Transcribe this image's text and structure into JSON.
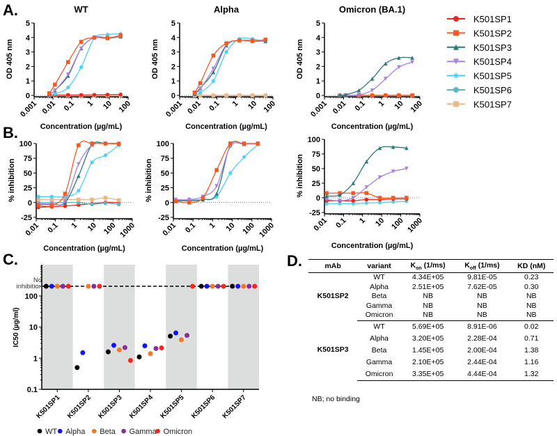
{
  "panel_labels": {
    "a": "A.",
    "b": "B.",
    "c": "C.",
    "d": "D."
  },
  "legend": [
    {
      "name": "K501SP1",
      "color": "#e8281f",
      "marker": "circle"
    },
    {
      "name": "K501SP2",
      "color": "#f25a24",
      "marker": "square"
    },
    {
      "name": "K501SP3",
      "color": "#2b7a78",
      "marker": "triangle"
    },
    {
      "name": "K501SP4",
      "color": "#a882dd",
      "marker": "triangle-down"
    },
    {
      "name": "K501SP5",
      "color": "#4dd0f0",
      "marker": "star"
    },
    {
      "name": "K501SP6",
      "color": "#5ab7c8",
      "marker": "circle"
    },
    {
      "name": "K501SP7",
      "color": "#e8b98a",
      "marker": "square"
    }
  ],
  "chart_data": [
    {
      "id": "A-WT",
      "type": "line",
      "title": "WT",
      "xlabel": "Concentration (µg/mL)",
      "ylabel": "OD 405 nm",
      "xscale": "log",
      "xlim": [
        0.001,
        100
      ],
      "xticks": [
        "0.001",
        "0.01",
        "0.1",
        "1",
        "10",
        "100"
      ],
      "ylim": [
        0,
        5
      ],
      "yticks": [
        0,
        1,
        2,
        3,
        4,
        5
      ],
      "x": [
        0.0064,
        0.0128,
        0.064,
        0.32,
        1.6,
        8,
        40
      ],
      "series": [
        {
          "name": "K501SP6",
          "values": [
            0,
            0,
            0,
            0,
            0,
            0,
            0
          ]
        },
        {
          "name": "K501SP7",
          "values": [
            0,
            0,
            0,
            0,
            0,
            0,
            0
          ]
        },
        {
          "name": "K501SP1",
          "values": [
            0.02,
            0.02,
            0.03,
            0.03,
            0.04,
            0.05,
            0.06
          ]
        },
        {
          "name": "K501SP5",
          "values": [
            0.05,
            0.1,
            0.55,
            1.95,
            3.95,
            4.2,
            4.25
          ]
        },
        {
          "name": "K501SP3",
          "values": [
            0.05,
            0.35,
            1.35,
            3.25,
            4.0,
            3.95,
            4.05
          ]
        },
        {
          "name": "K501SP4",
          "values": [
            0.05,
            0.35,
            1.45,
            3.25,
            4.0,
            4.0,
            4.05
          ]
        },
        {
          "name": "K501SP2",
          "values": [
            0.15,
            0.75,
            2.3,
            3.7,
            4.0,
            3.95,
            4.15
          ]
        }
      ]
    },
    {
      "id": "A-Alpha",
      "type": "line",
      "title": "Alpha",
      "xlabel": "Concentration (µg/mL)",
      "ylabel": "OD 405 nm",
      "xscale": "log",
      "xlim": [
        0.001,
        100
      ],
      "xticks": [
        "0.001",
        "0.01",
        "0.1",
        "1",
        "10",
        "100"
      ],
      "ylim": [
        0,
        5
      ],
      "yticks": [
        0,
        1,
        2,
        3,
        4,
        5
      ],
      "x": [
        0.0064,
        0.0128,
        0.064,
        0.32,
        1.6,
        8,
        40
      ],
      "series": [
        {
          "name": "K501SP1",
          "values": [
            0,
            0,
            0,
            0,
            0,
            0,
            0
          ]
        },
        {
          "name": "K501SP6",
          "values": [
            0,
            0,
            0,
            0,
            0,
            0,
            0
          ]
        },
        {
          "name": "K501SP7",
          "values": [
            0,
            0,
            0,
            0,
            0,
            0,
            0
          ]
        },
        {
          "name": "K501SP5",
          "values": [
            0.05,
            0.2,
            1.0,
            3.0,
            3.9,
            3.9,
            3.7
          ]
        },
        {
          "name": "K501SP3",
          "values": [
            0.1,
            0.5,
            1.6,
            3.45,
            3.8,
            3.75,
            3.75
          ]
        },
        {
          "name": "K501SP4",
          "values": [
            0.1,
            0.45,
            1.85,
            3.5,
            3.8,
            3.8,
            3.75
          ]
        },
        {
          "name": "K501SP2",
          "values": [
            0.2,
            0.85,
            2.75,
            3.6,
            3.8,
            3.75,
            3.85
          ]
        }
      ]
    },
    {
      "id": "A-Omicron",
      "type": "line",
      "title": "Omicron (BA.1)",
      "xlabel": "Concentration (µg/mL)",
      "ylabel": "OD 405 nm",
      "xscale": "log",
      "xlim": [
        0.001,
        100
      ],
      "xticks": [
        "0.001",
        "0.01",
        "0.1",
        "1",
        "10",
        "100"
      ],
      "ylim": [
        0,
        5
      ],
      "yticks": [
        0,
        1,
        2,
        3,
        4,
        5
      ],
      "x": [
        0.0064,
        0.0128,
        0.064,
        0.32,
        1.6,
        8,
        40
      ],
      "series": [
        {
          "name": "K501SP6",
          "values": [
            0,
            0,
            0,
            0,
            0,
            0,
            0
          ]
        },
        {
          "name": "K501SP7",
          "values": [
            0,
            0,
            0,
            0,
            0,
            0,
            0
          ]
        },
        {
          "name": "K501SP5",
          "values": [
            0,
            0,
            0,
            0,
            0,
            0,
            0
          ]
        },
        {
          "name": "K501SP1",
          "values": [
            0,
            0,
            0,
            0,
            0,
            0,
            0
          ]
        },
        {
          "name": "K501SP2",
          "values": [
            0,
            0,
            0,
            0,
            0,
            0,
            0
          ]
        },
        {
          "name": "K501SP4",
          "values": [
            0,
            0,
            0.05,
            0.35,
            1.15,
            1.95,
            2.3
          ]
        },
        {
          "name": "K501SP3",
          "values": [
            0,
            0.05,
            0.35,
            1.15,
            2.2,
            2.6,
            2.6
          ]
        }
      ]
    },
    {
      "id": "B-WT",
      "type": "line",
      "xlabel": "Concentration (µg/mL)",
      "ylabel": "% inhibition",
      "xscale": "log",
      "xlim": [
        0.01,
        1000
      ],
      "xticks": [
        "0.01",
        "0.1",
        "1",
        "10",
        "100",
        "1000"
      ],
      "ylim": [
        -25,
        100
      ],
      "yticks": [
        -25,
        0,
        25,
        50,
        75,
        100
      ],
      "x": [
        0.013,
        0.064,
        0.32,
        1.6,
        8,
        40,
        200
      ],
      "series": [
        {
          "name": "K501SP1",
          "values": [
            -8,
            -7,
            -6,
            -4,
            -2,
            0,
            0
          ]
        },
        {
          "name": "K501SP6",
          "values": [
            0,
            0,
            0,
            0,
            -3,
            -1,
            -3
          ]
        },
        {
          "name": "K501SP7",
          "values": [
            5,
            5,
            5,
            5,
            5,
            8,
            4
          ]
        },
        {
          "name": "K501SP5",
          "values": [
            10,
            10,
            10,
            20,
            68,
            80,
            97
          ]
        },
        {
          "name": "K501SP3",
          "values": [
            -3,
            -3,
            0,
            45,
            98,
            100,
            100
          ]
        },
        {
          "name": "K501SP4",
          "values": [
            -2,
            -2,
            2,
            65,
            97,
            100,
            100
          ]
        },
        {
          "name": "K501SP2",
          "values": [
            -5,
            -5,
            15,
            97,
            100,
            100,
            99
          ]
        }
      ]
    },
    {
      "id": "B-Alpha",
      "type": "line",
      "xlabel": "Concentration (µg/mL)",
      "ylabel": "% inhibition",
      "xscale": "log",
      "xlim": [
        0.01,
        1000
      ],
      "xticks": [
        "0.01",
        "0.1",
        "1",
        "10",
        "100",
        "1000"
      ],
      "ylim": [
        -25,
        100
      ],
      "yticks": [
        -25,
        0,
        25,
        50,
        75,
        100
      ],
      "x": [
        0.013,
        0.064,
        0.32,
        1.6,
        8,
        40,
        200
      ],
      "series": [
        {
          "name": "K501SP5",
          "values": [
            3,
            4,
            5,
            10,
            50,
            77,
            98
          ]
        },
        {
          "name": "K501SP3",
          "values": [
            3,
            3,
            5,
            15,
            97,
            99,
            100
          ]
        },
        {
          "name": "K501SP4",
          "values": [
            5,
            5,
            10,
            28,
            95,
            99,
            99
          ]
        },
        {
          "name": "K501SP2",
          "values": [
            2,
            0,
            8,
            55,
            100,
            100,
            100
          ]
        }
      ]
    },
    {
      "id": "B-Omicron",
      "type": "line",
      "xlabel": "Concentration (µg/mL)",
      "ylabel": "% inhibition",
      "xscale": "log",
      "xlim": [
        0.01,
        1000
      ],
      "xticks": [
        "0.01",
        "0.1",
        "1",
        "10",
        "100",
        "1000"
      ],
      "ylim": [
        -25,
        100
      ],
      "yticks": [
        -25,
        0,
        25,
        50,
        75,
        100
      ],
      "x": [
        0.013,
        0.064,
        0.32,
        1.6,
        8,
        40,
        200
      ],
      "series": [
        {
          "name": "K501SP5",
          "values": [
            -10,
            -10,
            -10,
            -9,
            -8,
            -7,
            -6
          ]
        },
        {
          "name": "K501SP1",
          "values": [
            -5,
            -5,
            -5,
            -3,
            -3,
            -2,
            -2
          ]
        },
        {
          "name": "K501SP2",
          "values": [
            8,
            8,
            8,
            8,
            0,
            0,
            0
          ]
        },
        {
          "name": "K501SP4",
          "values": [
            -3,
            -5,
            0,
            18,
            35,
            45,
            50
          ]
        },
        {
          "name": "K501SP3",
          "values": [
            3,
            5,
            25,
            62,
            85,
            87,
            85
          ]
        }
      ]
    },
    {
      "id": "C",
      "type": "scatter",
      "ylabel": "IC50 (µg/ml)",
      "yscale": "log",
      "ylim": [
        0.1,
        500
      ],
      "yticks": [
        "0.1",
        "1",
        "10",
        "100"
      ],
      "no_inhibition_label": "No inhibition",
      "categories": [
        "K501SP1",
        "K501SP2",
        "K501SP3",
        "K501SP4",
        "K501SP5",
        "K501SP6",
        "K501SP7"
      ],
      "series": [
        {
          "name": "WT",
          "color": "#000000",
          "values": [
            null,
            0.5,
            1.6,
            1.1,
            5.1,
            null,
            null
          ]
        },
        {
          "name": "Alpha",
          "color": "#1414f0",
          "values": [
            null,
            1.5,
            2.6,
            2.5,
            6.5,
            null,
            null
          ]
        },
        {
          "name": "Beta",
          "color": "#f07a28",
          "values": [
            null,
            null,
            1.85,
            1.4,
            3.9,
            null,
            null
          ]
        },
        {
          "name": "Gamma",
          "color": "#8a2c9c",
          "values": [
            null,
            null,
            2.2,
            2.05,
            5.4,
            null,
            null
          ]
        },
        {
          "name": "Omicron",
          "color": "#f0281e",
          "values": [
            null,
            null,
            0.85,
            2.15,
            null,
            null,
            null
          ]
        }
      ]
    }
  ],
  "table": {
    "headers": [
      "mAb",
      "variant",
      "Kon (1/ms)",
      "Koff (1/ms)",
      "KD (nM)"
    ],
    "groups": [
      {
        "mab": "K501SP2",
        "rows": [
          [
            "WT",
            "4.34E+05",
            "9.81E-05",
            "0.23"
          ],
          [
            "Alpha",
            "2.51E+05",
            "7.62E-05",
            "0.30"
          ],
          [
            "Beta",
            "NB",
            "NB",
            "NB"
          ],
          [
            "Gamma",
            "NB",
            "NB",
            "NB"
          ],
          [
            "Omicron",
            "NB",
            "NB",
            "NB"
          ]
        ]
      },
      {
        "mab": "K501SP3",
        "rows": [
          [
            "WT",
            "5.69E+05",
            "8.91E-06",
            "0.02"
          ],
          [
            "Alpha",
            "3.20E+05",
            "2.28E-04",
            "0.71"
          ],
          [
            "Beta",
            "1.45E+05",
            "2.00E-04",
            "1.38"
          ],
          [
            "Gamma",
            "2.10E+05",
            "2.44E-04",
            "1.16"
          ],
          [
            "Omicron",
            "3.35E+05",
            "4.44E-04",
            "1.32"
          ]
        ]
      }
    ],
    "note": "NB; no binding"
  }
}
